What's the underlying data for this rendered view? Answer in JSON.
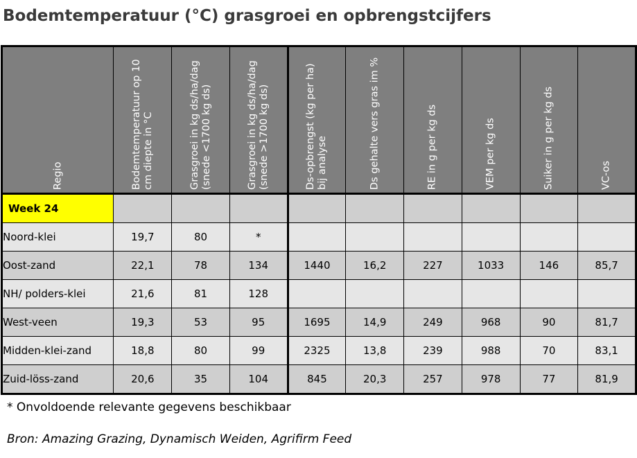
{
  "title": "Bodemtemperatuur (°C) grasgroei en opbrengstcijfers",
  "headers": [
    "Regio",
    "Bodemtemperatuur op 10 cm diepte in °C",
    "Grasgroei in kg ds/ha/dag (snede <1700 kg ds)",
    "Grasgroei in kg ds/ha/dag (snede >1700 kg ds)",
    "Ds-opbrengst (kg per ha) bij analyse",
    "Ds gehalte vers gras im %",
    "RE in g per kg ds",
    "VEM per kg ds",
    "Suiker in g per kg ds",
    "VC-os"
  ],
  "week_label": "Week 24",
  "rows": [
    {
      "regio": "Noord-klei",
      "v": [
        "19,7",
        "80",
        "*",
        "",
        "",
        "",
        "",
        "",
        ""
      ]
    },
    {
      "regio": "Oost-zand",
      "v": [
        "22,1",
        "78",
        "134",
        "1440",
        "16,2",
        "227",
        "1033",
        "146",
        "85,7"
      ]
    },
    {
      "regio": "NH/ polders-klei",
      "v": [
        "21,6",
        "81",
        "128",
        "",
        "",
        "",
        "",
        "",
        ""
      ]
    },
    {
      "regio": "West-veen",
      "v": [
        "19,3",
        "53",
        "95",
        "1695",
        "14,9",
        "249",
        "968",
        "90",
        "81,7"
      ]
    },
    {
      "regio": "Midden-klei-zand",
      "v": [
        "18,8",
        "80",
        "99",
        "2325",
        "13,8",
        "239",
        "988",
        "70",
        "83,1"
      ]
    },
    {
      "regio": "Zuid-löss-zand",
      "v": [
        "20,6",
        "35",
        "104",
        "845",
        "20,3",
        "257",
        "978",
        "77",
        "81,9"
      ]
    }
  ],
  "footnote": "* Onvoldoende relevante gegevens beschikbaar",
  "source": "Bron: Amazing Grazing, Dynamisch Weiden, Agrifirm Feed"
}
